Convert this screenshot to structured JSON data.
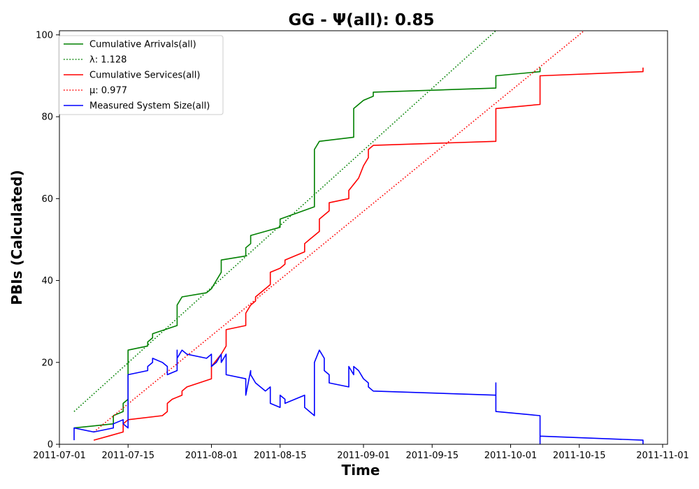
{
  "chart_data": {
    "type": "line",
    "title": "GG -  Ψ(all): 0.85",
    "xlabel": "Time",
    "ylabel": "PBIs (Calculated)",
    "x_type": "date",
    "xlim": [
      "2011-07-01",
      "2011-11-02"
    ],
    "ylim": [
      0,
      101
    ],
    "x_ticks": [
      "2011-07-01",
      "2011-07-15",
      "2011-08-01",
      "2011-08-15",
      "2011-09-01",
      "2011-09-15",
      "2011-10-01",
      "2011-10-15",
      "2011-11-01"
    ],
    "y_ticks": [
      0,
      20,
      40,
      60,
      80,
      100
    ],
    "grid": false,
    "legend_position": "top-left",
    "series": [
      {
        "name": "Cumulative Arrivals(all)",
        "style": "solid",
        "color": "#008000",
        "points": [
          [
            "2011-07-04",
            4
          ],
          [
            "2011-07-12",
            5
          ],
          [
            "2011-07-12",
            7
          ],
          [
            "2011-07-14",
            8
          ],
          [
            "2011-07-14",
            10
          ],
          [
            "2011-07-15",
            11
          ],
          [
            "2011-07-15",
            23
          ],
          [
            "2011-07-19",
            24
          ],
          [
            "2011-07-19",
            25
          ],
          [
            "2011-07-20",
            26
          ],
          [
            "2011-07-20",
            27
          ],
          [
            "2011-07-25",
            29
          ],
          [
            "2011-07-25",
            34
          ],
          [
            "2011-07-26",
            36
          ],
          [
            "2011-07-31",
            37
          ],
          [
            "2011-08-01",
            38
          ],
          [
            "2011-08-02",
            40
          ],
          [
            "2011-08-03",
            42
          ],
          [
            "2011-08-03",
            45
          ],
          [
            "2011-08-08",
            46
          ],
          [
            "2011-08-08",
            48
          ],
          [
            "2011-08-09",
            49
          ],
          [
            "2011-08-09",
            51
          ],
          [
            "2011-08-15",
            53
          ],
          [
            "2011-08-15",
            55
          ],
          [
            "2011-08-22",
            58
          ],
          [
            "2011-08-22",
            72
          ],
          [
            "2011-08-23",
            74
          ],
          [
            "2011-08-30",
            75
          ],
          [
            "2011-08-30",
            82
          ],
          [
            "2011-08-31",
            83
          ],
          [
            "2011-09-01",
            84
          ],
          [
            "2011-09-03",
            85
          ],
          [
            "2011-09-03",
            86
          ],
          [
            "2011-09-28",
            87
          ],
          [
            "2011-09-28",
            90
          ],
          [
            "2011-10-07",
            91
          ],
          [
            "2011-10-07",
            92
          ]
        ]
      },
      {
        "name": "λ: 1.128",
        "style": "dotted",
        "color": "#008000",
        "points": [
          [
            "2011-07-04",
            8
          ],
          [
            "2011-09-28",
            101
          ]
        ]
      },
      {
        "name": "Cumulative Services(all)",
        "style": "solid",
        "color": "#ff0000",
        "points": [
          [
            "2011-07-08",
            1
          ],
          [
            "2011-07-11",
            2
          ],
          [
            "2011-07-14",
            3
          ],
          [
            "2011-07-14",
            5
          ],
          [
            "2011-07-15",
            6
          ],
          [
            "2011-07-22",
            7
          ],
          [
            "2011-07-23",
            8
          ],
          [
            "2011-07-23",
            10
          ],
          [
            "2011-07-24",
            11
          ],
          [
            "2011-07-26",
            12
          ],
          [
            "2011-07-26",
            13
          ],
          [
            "2011-07-27",
            14
          ],
          [
            "2011-08-01",
            16
          ],
          [
            "2011-08-01",
            19
          ],
          [
            "2011-08-03",
            22
          ],
          [
            "2011-08-04",
            24
          ],
          [
            "2011-08-04",
            28
          ],
          [
            "2011-08-08",
            29
          ],
          [
            "2011-08-08",
            32
          ],
          [
            "2011-08-09",
            34
          ],
          [
            "2011-08-10",
            35
          ],
          [
            "2011-08-10",
            36
          ],
          [
            "2011-08-12",
            38
          ],
          [
            "2011-08-13",
            39
          ],
          [
            "2011-08-13",
            42
          ],
          [
            "2011-08-15",
            43
          ],
          [
            "2011-08-16",
            44
          ],
          [
            "2011-08-16",
            45
          ],
          [
            "2011-08-20",
            47
          ],
          [
            "2011-08-20",
            49
          ],
          [
            "2011-08-21",
            50
          ],
          [
            "2011-08-22",
            51
          ],
          [
            "2011-08-23",
            52
          ],
          [
            "2011-08-23",
            55
          ],
          [
            "2011-08-24",
            56
          ],
          [
            "2011-08-25",
            57
          ],
          [
            "2011-08-25",
            59
          ],
          [
            "2011-08-29",
            60
          ],
          [
            "2011-08-29",
            62
          ],
          [
            "2011-08-31",
            65
          ],
          [
            "2011-09-01",
            68
          ],
          [
            "2011-09-02",
            70
          ],
          [
            "2011-09-02",
            72
          ],
          [
            "2011-09-03",
            73
          ],
          [
            "2011-09-28",
            74
          ],
          [
            "2011-09-28",
            82
          ],
          [
            "2011-10-07",
            83
          ],
          [
            "2011-10-07",
            90
          ],
          [
            "2011-10-28",
            91
          ],
          [
            "2011-10-28",
            92
          ]
        ]
      },
      {
        "name": "μ: 0.977",
        "style": "dotted",
        "color": "#ff0000",
        "points": [
          [
            "2011-07-08",
            3
          ],
          [
            "2011-10-16",
            101
          ]
        ]
      },
      {
        "name": "Measured System Size(all)",
        "style": "solid",
        "color": "#0000ff",
        "points": [
          [
            "2011-07-04",
            1
          ],
          [
            "2011-07-04",
            4
          ],
          [
            "2011-07-08",
            3
          ],
          [
            "2011-07-12",
            4
          ],
          [
            "2011-07-12",
            5
          ],
          [
            "2011-07-14",
            6
          ],
          [
            "2011-07-14",
            5
          ],
          [
            "2011-07-15",
            4
          ],
          [
            "2011-07-15",
            17
          ],
          [
            "2011-07-19",
            18
          ],
          [
            "2011-07-19",
            19
          ],
          [
            "2011-07-20",
            20
          ],
          [
            "2011-07-20",
            21
          ],
          [
            "2011-07-22",
            20
          ],
          [
            "2011-07-23",
            19
          ],
          [
            "2011-07-23",
            17
          ],
          [
            "2011-07-24",
            17.5
          ],
          [
            "2011-07-25",
            18
          ],
          [
            "2011-07-25",
            23
          ],
          [
            "2011-07-25",
            21
          ],
          [
            "2011-07-26",
            23
          ],
          [
            "2011-07-27",
            22
          ],
          [
            "2011-07-31",
            21
          ],
          [
            "2011-08-01",
            22
          ],
          [
            "2011-08-01",
            19
          ],
          [
            "2011-08-02",
            20
          ],
          [
            "2011-08-03",
            22
          ],
          [
            "2011-08-03",
            20
          ],
          [
            "2011-08-04",
            22
          ],
          [
            "2011-08-04",
            17
          ],
          [
            "2011-08-08",
            16
          ],
          [
            "2011-08-08",
            12
          ],
          [
            "2011-08-09",
            18
          ],
          [
            "2011-08-09",
            17
          ],
          [
            "2011-08-10",
            15
          ],
          [
            "2011-08-12",
            13
          ],
          [
            "2011-08-13",
            14
          ],
          [
            "2011-08-13",
            10
          ],
          [
            "2011-08-15",
            9
          ],
          [
            "2011-08-15",
            12
          ],
          [
            "2011-08-16",
            11
          ],
          [
            "2011-08-16",
            10
          ],
          [
            "2011-08-20",
            12
          ],
          [
            "2011-08-20",
            9
          ],
          [
            "2011-08-21",
            8
          ],
          [
            "2011-08-22",
            7
          ],
          [
            "2011-08-22",
            20
          ],
          [
            "2011-08-23",
            23
          ],
          [
            "2011-08-24",
            21
          ],
          [
            "2011-08-24",
            18
          ],
          [
            "2011-08-25",
            17
          ],
          [
            "2011-08-25",
            15
          ],
          [
            "2011-08-29",
            14
          ],
          [
            "2011-08-29",
            19
          ],
          [
            "2011-08-30",
            17
          ],
          [
            "2011-08-30",
            19
          ],
          [
            "2011-08-31",
            18
          ],
          [
            "2011-09-01",
            16
          ],
          [
            "2011-09-02",
            15
          ],
          [
            "2011-09-02",
            14
          ],
          [
            "2011-09-03",
            13
          ],
          [
            "2011-09-28",
            12
          ],
          [
            "2011-09-28",
            15
          ],
          [
            "2011-09-28",
            8
          ],
          [
            "2011-10-07",
            7
          ],
          [
            "2011-10-07",
            0
          ],
          [
            "2011-10-07",
            2
          ],
          [
            "2011-10-28",
            1
          ],
          [
            "2011-10-28",
            0
          ]
        ]
      }
    ]
  }
}
